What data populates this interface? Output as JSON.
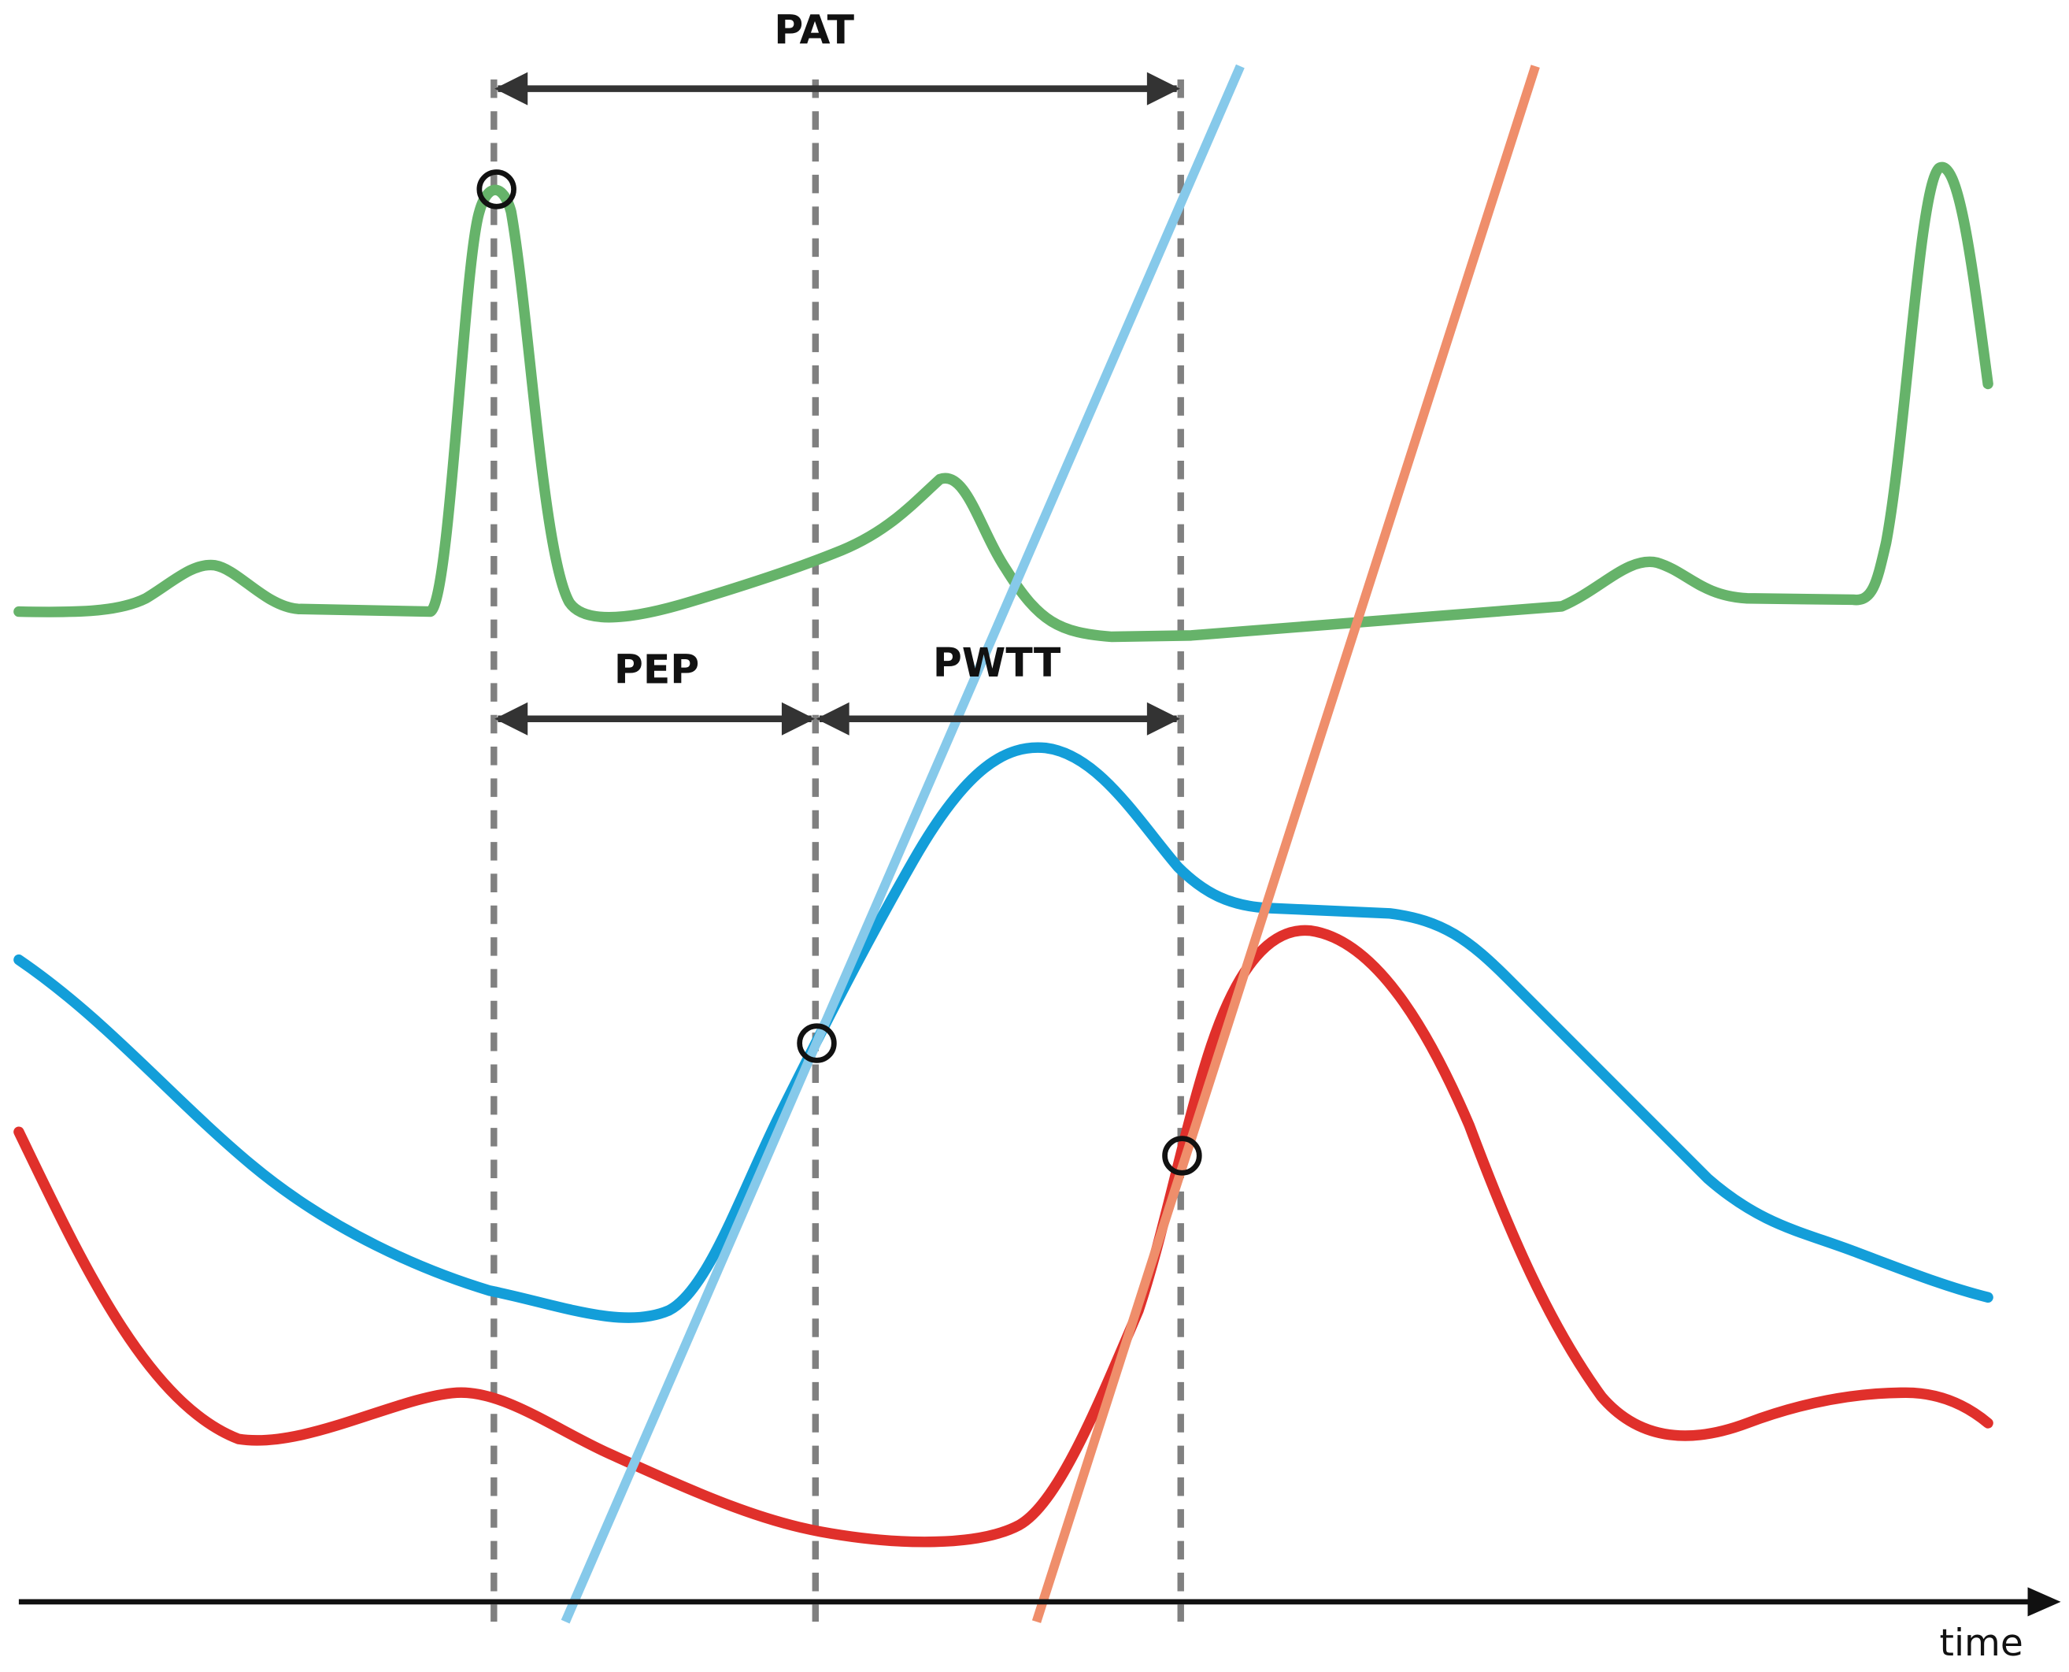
{
  "labels": {
    "pat": "PAT",
    "pep": "PEP",
    "pwtt": "PWTT",
    "time": "time"
  }
}
